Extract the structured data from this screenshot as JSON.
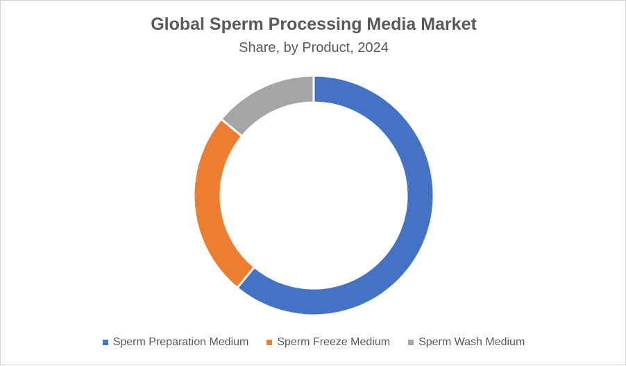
{
  "chart_data": {
    "type": "pie",
    "style": "donut",
    "title": "Global Sperm Processing Media Market",
    "subtitle": "Share, by Product, 2024",
    "legend_position": "bottom",
    "series": [
      {
        "name": "Sperm Preparation Medium",
        "value": 61,
        "color": "#4472C4"
      },
      {
        "name": "Sperm Freeze Medium",
        "value": 25,
        "color": "#ED7D31"
      },
      {
        "name": "Sperm Wash Medium",
        "value": 14,
        "color": "#A5A5A5"
      }
    ]
  }
}
